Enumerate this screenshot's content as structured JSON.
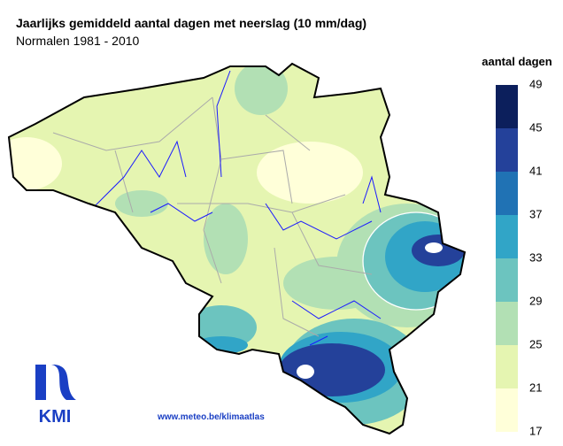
{
  "header": {
    "title": "Jaarlijks gemiddeld aantal dagen met neerslag (10 mm/dag)",
    "subtitle": "Normalen 1981 - 2010"
  },
  "legend": {
    "title": "aantal dagen",
    "ticks": [
      17,
      21,
      25,
      29,
      33,
      37,
      41,
      45,
      49
    ],
    "colors": [
      "#ffffd9",
      "#e5f5b1",
      "#b2e0b4",
      "#6cc4bf",
      "#31a5c7",
      "#2072b4",
      "#24419a",
      "#0c1f5c"
    ]
  },
  "footer": {
    "url": "www.meteo.be/klimaatlas",
    "logo": "KMI"
  }
}
